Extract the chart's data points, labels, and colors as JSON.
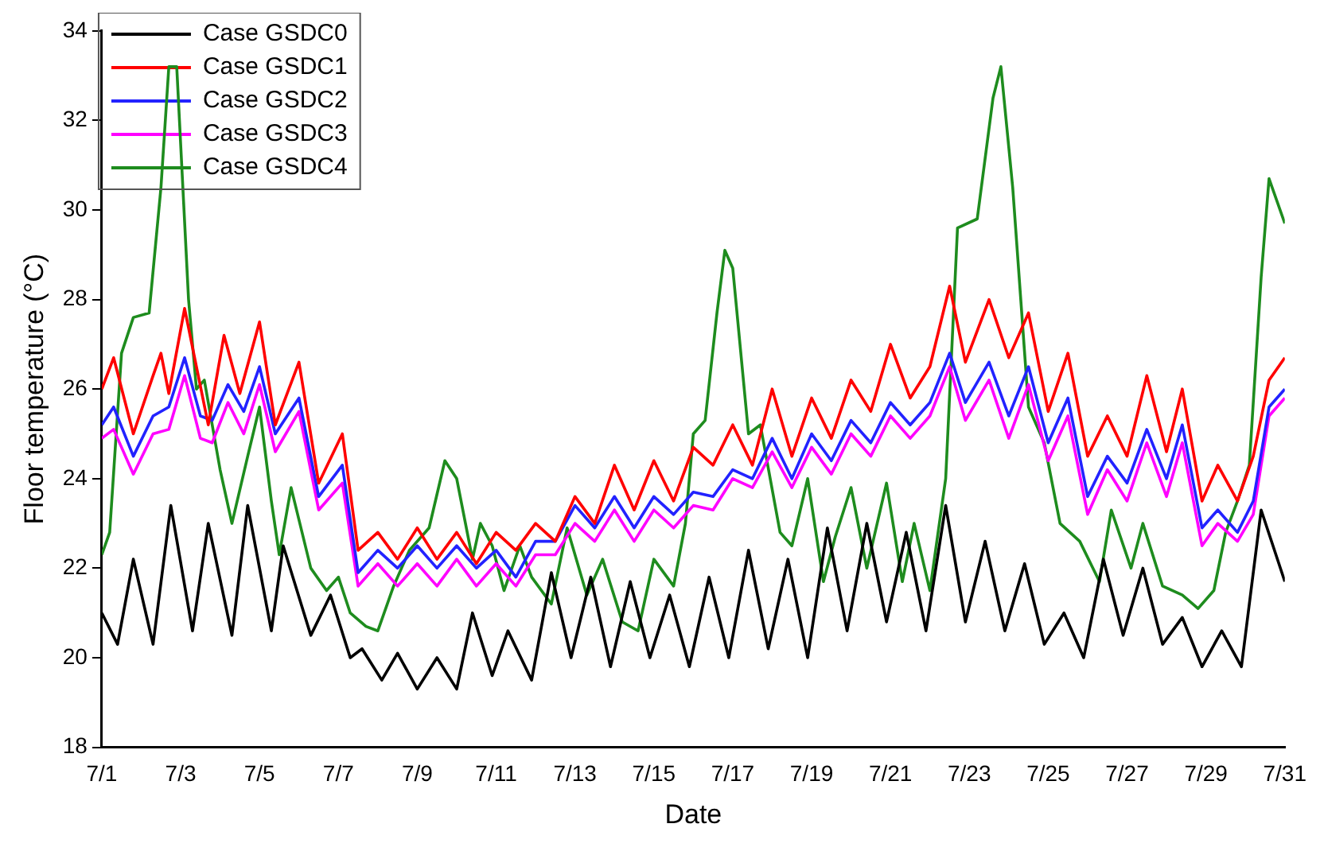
{
  "chart_data": {
    "type": "line",
    "xlabel": "Date",
    "ylabel": "Floor temperature (°C)",
    "xlim": [
      "--07-01",
      "--07-31"
    ],
    "ylim": [
      18,
      34
    ],
    "xticks": [
      {
        "value": "--07-01",
        "label": "7/1"
      },
      {
        "value": "--07-03",
        "label": "7/3"
      },
      {
        "value": "--07-05",
        "label": "7/5"
      },
      {
        "value": "--07-07",
        "label": "7/7"
      },
      {
        "value": "--07-09",
        "label": "7/9"
      },
      {
        "value": "--07-11",
        "label": "7/11"
      },
      {
        "value": "--07-13",
        "label": "7/13"
      },
      {
        "value": "--07-15",
        "label": "7/15"
      },
      {
        "value": "--07-17",
        "label": "7/17"
      },
      {
        "value": "--07-19",
        "label": "7/19"
      },
      {
        "value": "--07-21",
        "label": "7/21"
      },
      {
        "value": "--07-23",
        "label": "7/23"
      },
      {
        "value": "--07-25",
        "label": "7/25"
      },
      {
        "value": "--07-27",
        "label": "7/27"
      },
      {
        "value": "--07-29",
        "label": "7/29"
      },
      {
        "value": "--07-31",
        "label": "7/31"
      }
    ],
    "yticks": [
      18,
      20,
      22,
      24,
      26,
      28,
      30,
      32,
      34
    ],
    "grid": false,
    "legend": "top left",
    "marker": "none",
    "line_style": "solid",
    "x": [
      "--07-01",
      "--07-01T07:12",
      "--07-01T19:12",
      "--07-02T07:12",
      "--07-02T16:48",
      "--07-03T02:24",
      "--07-03T12:00",
      "--07-03T19:12",
      "--07-04T04:48",
      "--07-04T14:24",
      "--07-05",
      "--07-05T09:36",
      "--07-06",
      "--07-06T12:00",
      "--07-07T02:24",
      "--07-07T12:00",
      "--07-08",
      "--07-08T12:00",
      "--07-09",
      "--07-09T12:00",
      "--07-10",
      "--07-10T12:00",
      "--07-11",
      "--07-11T12:00",
      "--07-12",
      "--07-12T12:00",
      "--07-13",
      "--07-13T12:00",
      "--07-14",
      "--07-14T12:00",
      "--07-15",
      "--07-15T12:00",
      "--07-16",
      "--07-16T12:00",
      "--07-17",
      "--07-17T12:00",
      "--07-18",
      "--07-18T12:00",
      "--07-19",
      "--07-19T12:00",
      "--07-20",
      "--07-20T12:00",
      "--07-21",
      "--07-21T12:00",
      "--07-22",
      "--07-22T12:00",
      "--07-22T21:36",
      "--07-23T12:00",
      "--07-24",
      "--07-24T12:00",
      "--07-25",
      "--07-25T12:00",
      "--07-26",
      "--07-26T12:00",
      "--07-27",
      "--07-27T12:00",
      "--07-28",
      "--07-28T09:36",
      "--07-28T21:36",
      "--07-29T07:12",
      "--07-29T19:12",
      "--07-30T04:48",
      "--07-30T14:24",
      "--07-31"
    ],
    "series": [
      {
        "name": "Case GSDC0",
        "color": "#000000",
        "x": [
          "--07-01",
          "--07-01T09:36",
          "--07-01T19:12",
          "--07-02T07:12",
          "--07-02T18:00",
          "--07-03T07:12",
          "--07-03T16:48",
          "--07-04T07:12",
          "--07-04T16:48",
          "--07-05T07:12",
          "--07-05T14:24",
          "--07-06T07:12",
          "--07-06T19:12",
          "--07-07T07:12",
          "--07-07T14:24",
          "--07-08T02:24",
          "--07-08T12:00",
          "--07-09",
          "--07-09T12:00",
          "--07-10",
          "--07-10T09:36",
          "--07-10T21:36",
          "--07-11T07:12",
          "--07-11T21:36",
          "--07-12T09:36",
          "--07-12T21:36",
          "--07-13T09:36",
          "--07-13T21:36",
          "--07-14T09:36",
          "--07-14T21:36",
          "--07-15T09:36",
          "--07-15T21:36",
          "--07-16T09:36",
          "--07-16T21:36",
          "--07-17T09:36",
          "--07-17T21:36",
          "--07-18T09:36",
          "--07-18T21:36",
          "--07-19T09:36",
          "--07-19T21:36",
          "--07-20T09:36",
          "--07-20T21:36",
          "--07-21T09:36",
          "--07-21T21:36",
          "--07-22T09:36",
          "--07-22T21:36",
          "--07-23T09:36",
          "--07-23T21:36",
          "--07-24T09:36",
          "--07-24T21:36",
          "--07-25T09:36",
          "--07-25T21:36",
          "--07-26T09:36",
          "--07-26T21:36",
          "--07-27T09:36",
          "--07-27T21:36",
          "--07-28T09:36",
          "--07-28T21:36",
          "--07-29T09:36",
          "--07-29T21:36",
          "--07-30T09:36",
          "--07-31"
        ],
        "values": [
          21,
          20.3,
          22.2,
          20.3,
          23.4,
          20.6,
          23,
          20.5,
          23.4,
          20.6,
          22.5,
          20.5,
          21.4,
          20,
          20.2,
          19.5,
          20.1,
          19.3,
          20,
          19.3,
          21,
          19.6,
          20.6,
          19.5,
          21.9,
          20,
          21.8,
          19.8,
          21.7,
          20,
          21.4,
          19.8,
          21.8,
          20,
          22.4,
          20.2,
          22.2,
          20,
          22.9,
          20.6,
          23,
          20.8,
          22.8,
          20.6,
          23.4,
          20.8,
          22.6,
          20.6,
          22.1,
          20.3,
          21,
          20,
          22.2,
          20.5,
          22,
          20.3,
          20.9,
          19.8,
          20.6,
          19.8,
          23.3,
          21.7
        ]
      },
      {
        "name": "Case GSDC1",
        "color": "#ff0000",
        "x": [
          "--07-01",
          "--07-01T07:12",
          "--07-01T19:12",
          "--07-02T07:12",
          "--07-02T12:00",
          "--07-02T16:48",
          "--07-03T02:24",
          "--07-03T09:36",
          "--07-03T16:48",
          "--07-04T02:24",
          "--07-04T12:00",
          "--07-05",
          "--07-05T09:36",
          "--07-06",
          "--07-06T12:00",
          "--07-07T02:24",
          "--07-07T12:00",
          "--07-08",
          "--07-08T12:00",
          "--07-09",
          "--07-09T12:00",
          "--07-10",
          "--07-10T12:00",
          "--07-11",
          "--07-11T12:00",
          "--07-12",
          "--07-12T12:00",
          "--07-13",
          "--07-13T12:00",
          "--07-14",
          "--07-14T12:00",
          "--07-15",
          "--07-15T12:00",
          "--07-16",
          "--07-16T12:00",
          "--07-17",
          "--07-17T12:00",
          "--07-18",
          "--07-18T12:00",
          "--07-19",
          "--07-19T12:00",
          "--07-20",
          "--07-20T12:00",
          "--07-21",
          "--07-21T12:00",
          "--07-22",
          "--07-22T12:00",
          "--07-22T21:36",
          "--07-23T12:00",
          "--07-24",
          "--07-24T12:00",
          "--07-25",
          "--07-25T12:00",
          "--07-26",
          "--07-26T12:00",
          "--07-27",
          "--07-27T12:00",
          "--07-28",
          "--07-28T09:36",
          "--07-28T21:36",
          "--07-29T07:12",
          "--07-29T19:12",
          "--07-30T04:48",
          "--07-30T14:24",
          "--07-31"
        ],
        "values": [
          26,
          26.7,
          25,
          26.3,
          26.8,
          25.9,
          27.8,
          26.5,
          25.2,
          27.2,
          25.9,
          27.5,
          25.2,
          26.6,
          23.9,
          25,
          22.4,
          22.8,
          22.2,
          22.9,
          22.2,
          22.8,
          22.1,
          22.8,
          22.4,
          23,
          22.6,
          23.6,
          23,
          24.3,
          23.3,
          24.4,
          23.5,
          24.7,
          24.3,
          25.2,
          24.3,
          26,
          24.5,
          25.8,
          24.9,
          26.2,
          25.5,
          27,
          25.8,
          26.5,
          28.3,
          26.6,
          28,
          26.7,
          27.7,
          25.5,
          26.8,
          24.5,
          25.4,
          24.5,
          26.3,
          24.6,
          26,
          23.5,
          24.3,
          23.5,
          24.5,
          26.2,
          26.7
        ]
      },
      {
        "name": "Case GSDC2",
        "color": "#2222ff",
        "values": [
          25.2,
          25.6,
          24.5,
          25.4,
          25.6,
          26.7,
          25.4,
          25.3,
          26.1,
          25.5,
          26.5,
          25,
          25.8,
          23.6,
          24.3,
          21.9,
          22.4,
          22,
          22.5,
          22,
          22.5,
          22,
          22.4,
          21.8,
          22.6,
          22.6,
          23.4,
          22.9,
          23.6,
          22.9,
          23.6,
          23.2,
          23.7,
          23.6,
          24.2,
          24,
          24.9,
          24,
          25,
          24.4,
          25.3,
          24.8,
          25.7,
          25.2,
          25.7,
          26.8,
          25.7,
          26.6,
          25.4,
          26.5,
          24.8,
          25.8,
          23.6,
          24.5,
          23.9,
          25.1,
          24,
          25.2,
          22.9,
          23.3,
          22.8,
          23.5,
          25.6,
          26
        ]
      },
      {
        "name": "Case GSDC3",
        "color": "#ff00ff",
        "values": [
          24.9,
          25.1,
          24.1,
          25,
          25.1,
          26.3,
          24.9,
          24.8,
          25.7,
          25,
          26.1,
          24.6,
          25.5,
          23.3,
          23.9,
          21.6,
          22.1,
          21.6,
          22.1,
          21.6,
          22.2,
          21.6,
          22.1,
          21.6,
          22.3,
          22.3,
          23,
          22.6,
          23.3,
          22.6,
          23.3,
          22.9,
          23.4,
          23.3,
          24,
          23.8,
          24.6,
          23.8,
          24.7,
          24.1,
          25,
          24.5,
          25.4,
          24.9,
          25.4,
          26.5,
          25.3,
          26.2,
          24.9,
          26.1,
          24.4,
          25.4,
          23.2,
          24.2,
          23.5,
          24.8,
          23.6,
          24.8,
          22.5,
          23,
          22.6,
          23.2,
          25.4,
          25.8
        ]
      },
      {
        "name": "Case GSDC4",
        "color": "#1e8c1e",
        "x": [
          "--07-01",
          "--07-01T04:48",
          "--07-01T12:00",
          "--07-01T19:12",
          "--07-02T04:48",
          "--07-02T12:00",
          "--07-02T16:48",
          "--07-02T21:36",
          "--07-03T04:48",
          "--07-03T09:36",
          "--07-03T14:24",
          "--07-04",
          "--07-04T07:12",
          "--07-04T16:48",
          "--07-05",
          "--07-05T07:12",
          "--07-05T12:00",
          "--07-05T19:12",
          "--07-06T07:12",
          "--07-06T16:48",
          "--07-07",
          "--07-07T07:12",
          "--07-07T16:48",
          "--07-08",
          "--07-08T09:36",
          "--07-08T19:12",
          "--07-09T07:12",
          "--07-09T16:48",
          "--07-10",
          "--07-10T09:36",
          "--07-10T14:24",
          "--07-10T21:36",
          "--07-11T04:48",
          "--07-11T14:24",
          "--07-11T21:36",
          "--07-12T09:36",
          "--07-12T19:12",
          "--07-13T07:12",
          "--07-13T16:48",
          "--07-14T04:48",
          "--07-14T14:24",
          "--07-15",
          "--07-15T12:00",
          "--07-15T19:12",
          "--07-16",
          "--07-16T07:12",
          "--07-16T14:24",
          "--07-16T19:12",
          "--07-17",
          "--07-17T09:36",
          "--07-17T16:48",
          "--07-18T04:48",
          "--07-18T12:00",
          "--07-18T21:36",
          "--07-19T07:12",
          "--07-19T14:24",
          "--07-20",
          "--07-20T09:36",
          "--07-20T21:36",
          "--07-21T07:12",
          "--07-21T14:24",
          "--07-22",
          "--07-22T09:36",
          "--07-22T16:48",
          "--07-23T04:48",
          "--07-23T14:24",
          "--07-23T19:12",
          "--07-24T02:24",
          "--07-24T12:00",
          "--07-24T21:36",
          "--07-25T07:12",
          "--07-25T19:12",
          "--07-26T07:12",
          "--07-26T14:24",
          "--07-27T02:24",
          "--07-27T09:36",
          "--07-27T21:36",
          "--07-28T09:36",
          "--07-28T19:12",
          "--07-29T04:48",
          "--07-29T12:00",
          "--07-29T19:12",
          "--07-30T02:24",
          "--07-30T09:36",
          "--07-30T14:24",
          "--07-31"
        ],
        "values": [
          22.3,
          22.8,
          26.8,
          27.6,
          27.7,
          30.5,
          33.2,
          33.2,
          28,
          26,
          26.2,
          24.2,
          23,
          24.5,
          25.6,
          23.5,
          22.3,
          23.8,
          22,
          21.5,
          21.8,
          21,
          20.7,
          20.6,
          21.6,
          22.4,
          22.9,
          24.4,
          24,
          22.2,
          23,
          22.5,
          21.5,
          22.5,
          21.8,
          21.2,
          22.9,
          21.4,
          22.2,
          20.8,
          20.6,
          22.2,
          21.6,
          23,
          25,
          25.3,
          27.7,
          29.1,
          28.7,
          25,
          25.2,
          22.8,
          22.5,
          24,
          21.7,
          22.7,
          23.8,
          22,
          23.9,
          21.7,
          23,
          21.5,
          24,
          29.6,
          29.8,
          32.5,
          33.2,
          30.5,
          25.6,
          24.8,
          23,
          22.6,
          21.7,
          23.3,
          22,
          23,
          21.6,
          21.4,
          21.1,
          21.5,
          22.8,
          23.5,
          24.3,
          28.5,
          30.7,
          29.7
        ]
      }
    ]
  }
}
